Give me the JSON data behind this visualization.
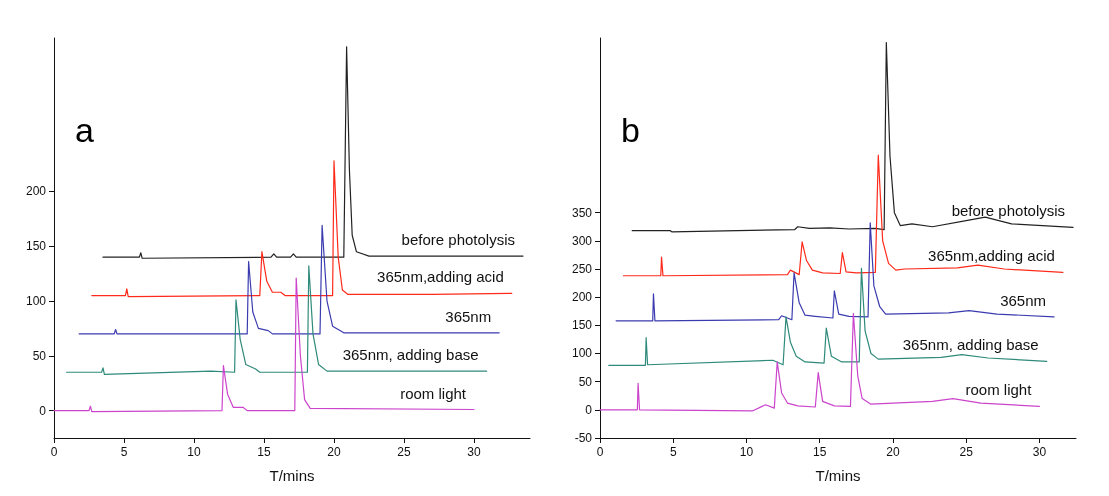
{
  "chart_data": [
    {
      "type": "line",
      "title": "a",
      "xlabel": "T/mins",
      "xlim": [
        0,
        34
      ],
      "ylim": [
        -25,
        340
      ],
      "xticks": [
        0,
        5,
        10,
        15,
        20,
        25,
        30
      ],
      "yticks": [
        0,
        50,
        100,
        150,
        200
      ],
      "grid": false,
      "legend": false,
      "marker": "none",
      "line_style": "solid",
      "series": [
        {
          "name": "before photolysis",
          "color": "#222222",
          "x": [
            3.5,
            6.1,
            6.2,
            6.3,
            15.5,
            15.7,
            15.9,
            16.9,
            17.1,
            17.3,
            20.7,
            20.9,
            21.1,
            21.3,
            21.6,
            22.5,
            33.5
          ],
          "values": [
            140,
            140,
            144,
            139,
            140,
            143,
            140,
            140,
            143,
            140,
            140,
            332,
            220,
            160,
            145,
            141,
            141
          ]
        },
        {
          "name": "365nm,adding acid",
          "color": "#ff2a1a",
          "x": [
            2.7,
            5.1,
            5.2,
            5.3,
            14.7,
            14.85,
            15.2,
            15.6,
            16.2,
            16.5,
            19.9,
            20.0,
            20.3,
            20.6,
            21.0,
            27,
            32.7
          ],
          "values": [
            105,
            105,
            111,
            104,
            105,
            145,
            118,
            108,
            108,
            105,
            105,
            228,
            140,
            110,
            106,
            106,
            107
          ]
        },
        {
          "name": "365nm",
          "color": "#3b3bb0",
          "x": [
            1.8,
            4.3,
            4.4,
            4.5,
            13.8,
            13.9,
            14.2,
            14.6,
            15.3,
            15.6,
            19.0,
            19.15,
            19.5,
            19.9,
            20.7,
            31.8
          ],
          "values": [
            70,
            70,
            74,
            70,
            70,
            136,
            90,
            75,
            73,
            70,
            70,
            169,
            100,
            77,
            71,
            71
          ]
        },
        {
          "name": "365nm, adding base",
          "color": "#2e8a7a",
          "x": [
            0.9,
            3.4,
            3.5,
            3.6,
            11.2,
            12.9,
            13.0,
            13.3,
            13.7,
            14.4,
            14.7,
            18.1,
            18.2,
            18.5,
            18.9,
            19.5,
            30.9
          ],
          "values": [
            35,
            35,
            39,
            33,
            36,
            35,
            101,
            65,
            42,
            38,
            35,
            35,
            132,
            70,
            42,
            36,
            36
          ]
        },
        {
          "name": "room light",
          "color": "#cc44cc",
          "x": [
            0,
            2.5,
            2.6,
            2.7,
            12.0,
            12.1,
            12.4,
            12.8,
            13.5,
            13.8,
            17.2,
            17.3,
            17.6,
            17.9,
            18.3,
            30
          ],
          "values": [
            0,
            0,
            4,
            -1,
            0,
            41,
            15,
            3,
            3,
            0,
            0,
            121,
            50,
            10,
            2,
            1
          ]
        }
      ]
    },
    {
      "type": "line",
      "title": "b",
      "xlabel": "T/mins",
      "xlim": [
        0,
        32.5
      ],
      "ylim": [
        -50,
        660
      ],
      "xticks": [
        0,
        5,
        10,
        15,
        20,
        25,
        30
      ],
      "yticks": [
        -50,
        0,
        50,
        100,
        150,
        200,
        250,
        300,
        350
      ],
      "grid": false,
      "legend": false,
      "marker": "none",
      "line_style": "solid",
      "series": [
        {
          "name": "before photolysis",
          "color": "#222222",
          "x": [
            2.2,
            4.8,
            4.9,
            13.3,
            13.5,
            14.3,
            15.7,
            17,
            18.8,
            19.4,
            19.55,
            19.8,
            20.1,
            20.5,
            21.3,
            22.7,
            25,
            26.3,
            28.1,
            32.3
          ],
          "values": [
            318,
            318,
            316,
            320,
            325,
            322,
            323,
            321,
            322,
            320,
            652,
            450,
            350,
            327,
            330,
            325,
            336,
            342,
            330,
            324
          ]
        },
        {
          "name": "365nm,adding acid",
          "color": "#ff2a1a",
          "x": [
            1.6,
            4.15,
            4.2,
            4.3,
            12.8,
            13.0,
            13.6,
            13.8,
            14.1,
            14.5,
            15.2,
            16.4,
            16.55,
            16.8,
            17.5,
            18.8,
            19.0,
            19.3,
            19.7,
            20.2,
            20.8,
            24.4,
            25.8,
            27.6,
            31.6
          ],
          "values": [
            238,
            238,
            271,
            238,
            240,
            248,
            240,
            298,
            265,
            248,
            243,
            242,
            279,
            245,
            243,
            244,
            452,
            300,
            260,
            248,
            250,
            252,
            257,
            250,
            244
          ]
        },
        {
          "name": "365nm",
          "color": "#3b3bb0",
          "x": [
            1.1,
            3.6,
            3.65,
            3.75,
            12.2,
            12.4,
            13.1,
            13.25,
            13.6,
            14.0,
            14.7,
            15.9,
            16.0,
            16.3,
            17,
            18.3,
            18.45,
            18.7,
            19.1,
            19.5,
            23.8,
            25.2,
            27.1,
            31
          ],
          "values": [
            158,
            158,
            206,
            158,
            160,
            167,
            160,
            243,
            190,
            168,
            166,
            163,
            211,
            170,
            166,
            165,
            332,
            220,
            183,
            170,
            172,
            176,
            170,
            165
          ]
        },
        {
          "name": "365nm, adding base",
          "color": "#2e8a7a",
          "x": [
            0.6,
            3.1,
            3.15,
            3.25,
            11.8,
            12.5,
            12.7,
            13.0,
            13.4,
            14,
            15.3,
            15.45,
            15.8,
            16.5,
            17.7,
            17.85,
            18.1,
            18.5,
            19.0,
            23.3,
            24.7,
            26.5,
            30.5
          ],
          "values": [
            79,
            79,
            128,
            80,
            88,
            80,
            165,
            120,
            95,
            85,
            83,
            145,
            95,
            85,
            85,
            251,
            140,
            100,
            90,
            93,
            98,
            92,
            86
          ]
        },
        {
          "name": "room light",
          "color": "#cc44cc",
          "x": [
            0,
            2.55,
            2.6,
            2.7,
            10.4,
            11.3,
            11.9,
            12.1,
            12.4,
            12.8,
            13.5,
            14.7,
            14.9,
            15.2,
            16,
            17.1,
            17.3,
            17.6,
            17.9,
            18.5,
            22.7,
            24.1,
            26,
            30
          ],
          "values": [
            0,
            0,
            47,
            0,
            -2,
            9,
            3,
            85,
            30,
            12,
            7,
            5,
            66,
            15,
            7,
            6,
            171,
            60,
            20,
            10,
            15,
            20,
            12,
            6
          ]
        }
      ]
    }
  ]
}
